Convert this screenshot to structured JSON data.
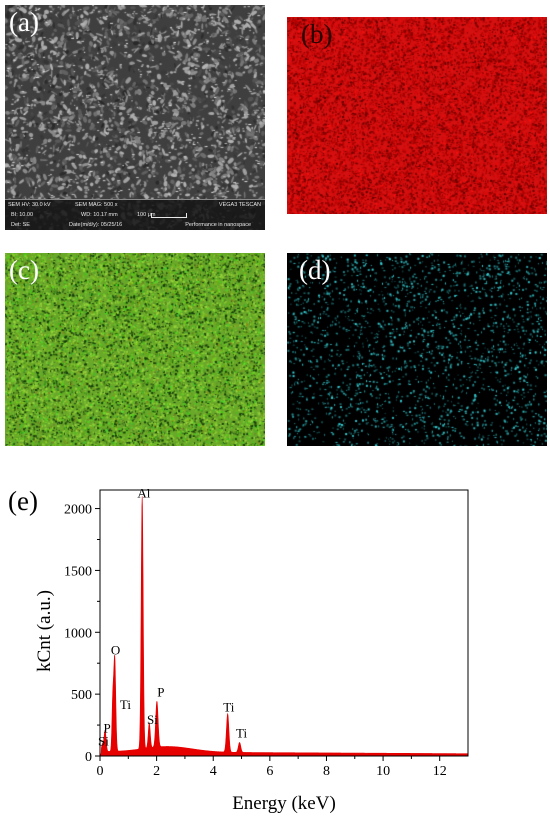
{
  "panels": {
    "a": {
      "label": "(a)",
      "sem_info": {
        "hv": "SEM HV: 30.0 kV",
        "mag": "SEM MAG: 500 x",
        "vendor": "VEGA3 TESCAN",
        "bi": "BI: 10.00",
        "wd": "WD: 10.17 mm",
        "scale": "100 μm",
        "det": "Det: SE",
        "date": "Date(m/d/y): 05/25/16",
        "lab": "Performance in nanospace"
      }
    },
    "b": {
      "label": "(b)",
      "map_color": "#d41010"
    },
    "c": {
      "label": "(c)",
      "map_color": "#6aa82a"
    },
    "d": {
      "label": "(d)",
      "map_color": "#000000",
      "dot_color": "#36d1d8"
    }
  },
  "chart_data": {
    "type": "area",
    "panel_label": "(e)",
    "xlabel": "Energy (keV)",
    "ylabel": "kCnt (a.u.)",
    "xlim": [
      0,
      13
    ],
    "ylim": [
      0,
      2150
    ],
    "xticks": [
      0,
      2,
      4,
      6,
      8,
      10,
      12
    ],
    "yticks": [
      0,
      500,
      1000,
      1500,
      2000
    ],
    "minor_xticks": true,
    "fill_color": "#e60000",
    "background_level": 35,
    "peaks": [
      {
        "label": "Si",
        "energy": 0.09,
        "height": 60,
        "width": 0.05
      },
      {
        "label": "P",
        "energy": 0.18,
        "height": 170,
        "width": 0.05
      },
      {
        "label": "O",
        "energy": 0.52,
        "height": 760,
        "width": 0.05
      },
      {
        "label": "Ti",
        "energy": 0.45,
        "height": 380,
        "width": 0.04
      },
      {
        "label": "Al",
        "energy": 1.49,
        "height": 2040,
        "width": 0.05
      },
      {
        "label": "Si",
        "energy": 1.74,
        "height": 200,
        "width": 0.05
      },
      {
        "label": "P",
        "energy": 2.01,
        "height": 370,
        "width": 0.06
      },
      {
        "label": "Ti",
        "energy": 4.51,
        "height": 310,
        "width": 0.06
      },
      {
        "label": "Ti",
        "energy": 4.93,
        "height": 80,
        "width": 0.06
      }
    ],
    "peak_labels": [
      {
        "text": "Al",
        "energy": 1.55,
        "value": 2090
      },
      {
        "text": "O",
        "energy": 0.55,
        "value": 820
      },
      {
        "text": "Ti",
        "energy": 0.9,
        "value": 380
      },
      {
        "text": "P",
        "energy": 2.15,
        "value": 480
      },
      {
        "text": "Si",
        "energy": 1.85,
        "value": 260
      },
      {
        "text": "P",
        "energy": 0.25,
        "value": 190
      },
      {
        "text": "Si",
        "energy": 0.12,
        "value": 85
      },
      {
        "text": "Ti",
        "energy": 4.55,
        "value": 360
      },
      {
        "text": "Ti",
        "energy": 5.0,
        "value": 150
      }
    ]
  }
}
